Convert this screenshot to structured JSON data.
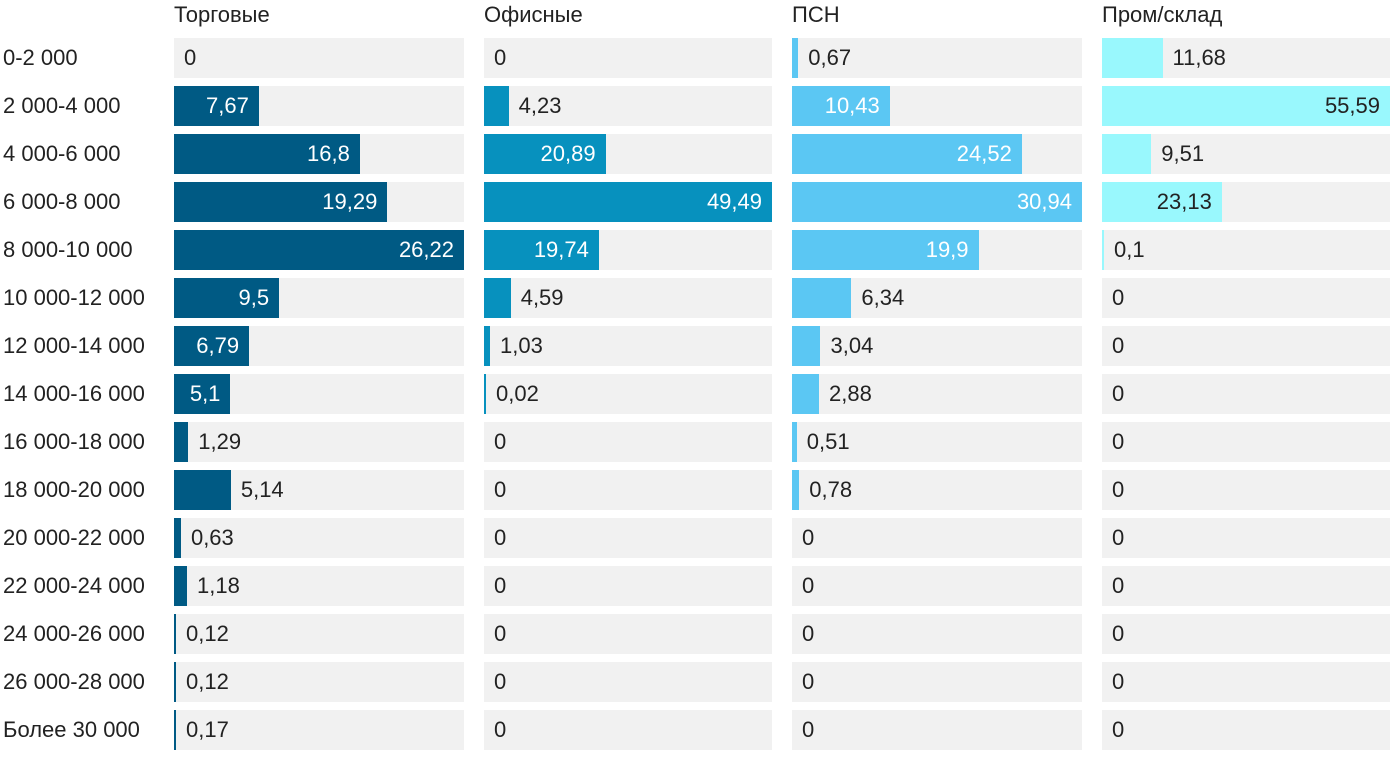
{
  "chart_data": {
    "type": "bar",
    "orientation": "horizontal",
    "layout": "small-multiples",
    "categories": [
      "0-2 000",
      "2 000-4 000",
      "4 000-6 000",
      "6 000-8 000",
      "8 000-10 000",
      "10 000-12 000",
      "12 000-14 000",
      "14 000-16 000",
      "16 000-18 000",
      "18 000-20 000",
      "20 000-22 000",
      "22 000-24 000",
      "24 000-26 000",
      "26 000-28 000",
      "Более 30 000"
    ],
    "series": [
      {
        "name": "Торговые",
        "color": "#005a84",
        "values": [
          0,
          7.67,
          16.8,
          19.29,
          26.22,
          9.5,
          6.79,
          5.1,
          1.29,
          5.14,
          0.63,
          1.18,
          0.12,
          0.12,
          0.17
        ],
        "labels": [
          "0",
          "7,67",
          "16,8",
          "19,29",
          "26,22",
          "9,5",
          "6,79",
          "5,1",
          "1,29",
          "5,14",
          "0,63",
          "1,18",
          "0,12",
          "0,12",
          "0,17"
        ],
        "xlim": [
          0,
          26.22
        ]
      },
      {
        "name": "Офисные",
        "color": "#0791be",
        "values": [
          0,
          4.23,
          20.89,
          49.49,
          19.74,
          4.59,
          1.03,
          0.02,
          0,
          0,
          0,
          0,
          0,
          0,
          0
        ],
        "labels": [
          "0",
          "4,23",
          "20,89",
          "49,49",
          "19,74",
          "4,59",
          "1,03",
          "0,02",
          "0",
          "0",
          "0",
          "0",
          "0",
          "0",
          "0"
        ],
        "xlim": [
          0,
          49.49
        ]
      },
      {
        "name": "ПСН",
        "color": "#5bc7f3",
        "values": [
          0.67,
          10.43,
          24.52,
          30.94,
          19.9,
          6.34,
          3.04,
          2.88,
          0.51,
          0.78,
          0,
          0,
          0,
          0,
          0
        ],
        "labels": [
          "0,67",
          "10,43",
          "24,52",
          "30,94",
          "19,9",
          "6,34",
          "3,04",
          "2,88",
          "0,51",
          "0,78",
          "0",
          "0",
          "0",
          "0",
          "0"
        ],
        "xlim": [
          0,
          30.94
        ]
      },
      {
        "name": "Пром/склад",
        "color": "#99f8fd",
        "values": [
          11.68,
          55.59,
          9.51,
          23.13,
          0.1,
          0,
          0,
          0,
          0,
          0,
          0,
          0,
          0,
          0,
          0
        ],
        "labels": [
          "11,68",
          "55,59",
          "9,51",
          "23,13",
          "0,1",
          "0",
          "0",
          "0",
          "0",
          "0",
          "0",
          "0",
          "0",
          "0",
          "0"
        ],
        "xlim": [
          0,
          55.59
        ]
      }
    ],
    "title": "",
    "xlabel": "",
    "ylabel": "",
    "grid": false,
    "legend": "none",
    "value_label_light_color": "#ffffff",
    "value_label_dark_color": "#222222"
  }
}
